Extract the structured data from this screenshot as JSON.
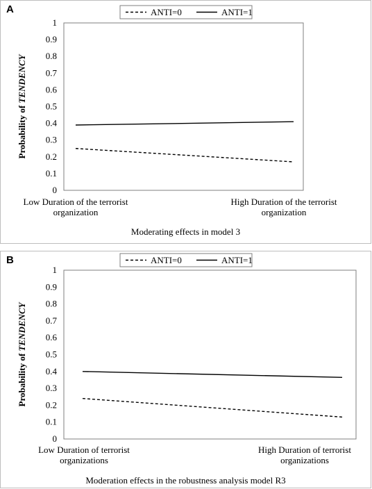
{
  "chart_data": [
    {
      "type": "line",
      "panel_label": "A",
      "caption": "Moderating effects in model 3",
      "ylabel_prefix": "Probability of ",
      "ylabel_italic": "TENDENCY",
      "ylim": [
        0,
        1
      ],
      "yticks": [
        "0",
        "0.1",
        "0.2",
        "0.3",
        "0.4",
        "0.5",
        "0.6",
        "0.7",
        "0.8",
        "0.9",
        "1"
      ],
      "categories": [
        [
          "Low Duration of the terrorist",
          "organization"
        ],
        [
          "High Duration of the terrorist",
          "organization"
        ]
      ],
      "legend_position": "top",
      "grid": false,
      "series": [
        {
          "name": "ANTI=0",
          "style": "dashed",
          "values": [
            0.25,
            0.17
          ]
        },
        {
          "name": "ANTI=1",
          "style": "solid",
          "values": [
            0.39,
            0.41
          ]
        }
      ]
    },
    {
      "type": "line",
      "panel_label": "B",
      "caption": "Moderation effects in the robustness analysis model R3",
      "ylabel_prefix": "Probability of ",
      "ylabel_italic": "TENDENCY",
      "ylim": [
        0,
        1
      ],
      "yticks": [
        "0",
        "0.1",
        "0.2",
        "0.3",
        "0.4",
        "0.5",
        "0.6",
        "0.7",
        "0.8",
        "0.9",
        "1"
      ],
      "categories": [
        [
          "Low Duration of terrorist",
          "organizations"
        ],
        [
          "High Duration of terrorist",
          "organizations"
        ]
      ],
      "legend_position": "top",
      "grid": false,
      "series": [
        {
          "name": "ANTI=0",
          "style": "dashed",
          "values": [
            0.24,
            0.13
          ]
        },
        {
          "name": "ANTI=1",
          "style": "solid",
          "values": [
            0.4,
            0.365
          ]
        }
      ]
    }
  ]
}
